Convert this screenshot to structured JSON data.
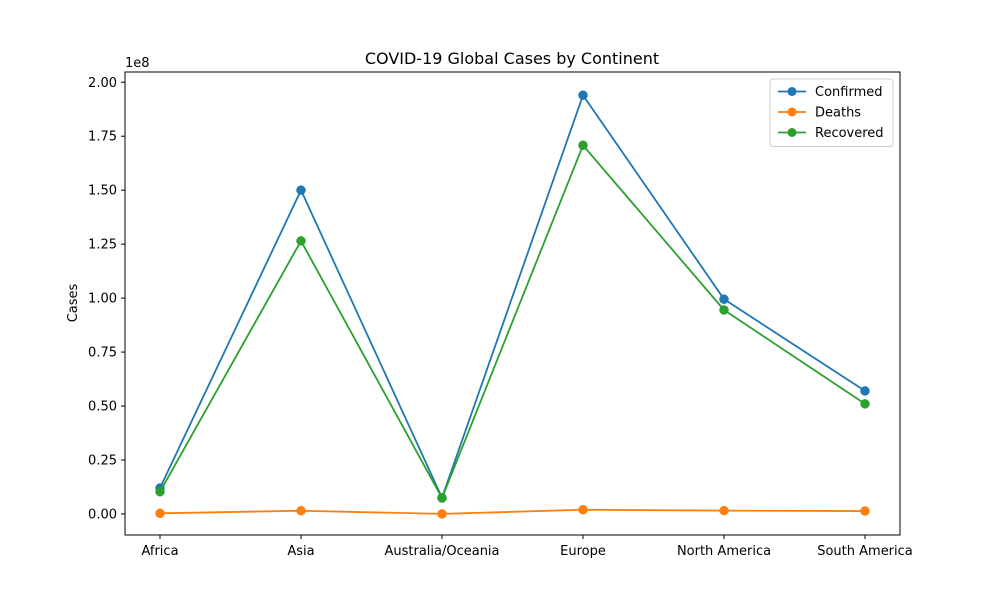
{
  "chart_data": {
    "type": "line",
    "title": "COVID-19 Global Cases by Continent",
    "xlabel": "",
    "ylabel": "Cases",
    "y_offset_label": "1e8",
    "categories": [
      "Africa",
      "Asia",
      "Australia/Oceania",
      "Europe",
      "North America",
      "South America"
    ],
    "series": [
      {
        "name": "Confirmed",
        "color": "#1f77b4",
        "values": [
          12000000,
          150000000,
          7500000,
          194000000,
          99500000,
          57000000
        ]
      },
      {
        "name": "Deaths",
        "color": "#ff7f0e",
        "values": [
          300000,
          1500000,
          25000,
          1950000,
          1550000,
          1350000
        ]
      },
      {
        "name": "Recovered",
        "color": "#2ca02c",
        "values": [
          10300000,
          126500000,
          7400000,
          170800000,
          94500000,
          51000000
        ]
      }
    ],
    "ylim": [
      -9750000,
      204750000
    ],
    "yticks": [
      {
        "value": 0,
        "label": "0.00"
      },
      {
        "value": 25000000,
        "label": "0.25"
      },
      {
        "value": 50000000,
        "label": "0.50"
      },
      {
        "value": 75000000,
        "label": "0.75"
      },
      {
        "value": 100000000,
        "label": "1.00"
      },
      {
        "value": 125000000,
        "label": "1.25"
      },
      {
        "value": 150000000,
        "label": "1.50"
      },
      {
        "value": 175000000,
        "label": "1.75"
      },
      {
        "value": 200000000,
        "label": "2.00"
      }
    ],
    "grid": false,
    "legend_position": "upper right",
    "marker": "circle"
  }
}
